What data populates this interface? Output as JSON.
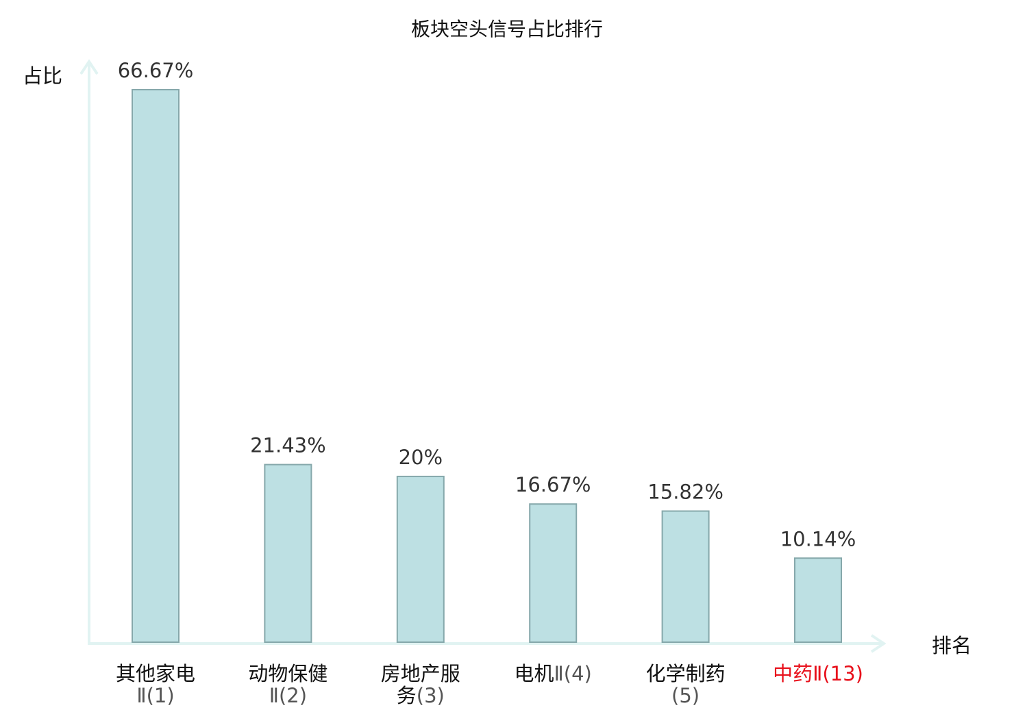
{
  "chart_data": {
    "type": "bar",
    "title": "板块空头信号占比排行",
    "ylabel": "占比",
    "xlabel": "排名",
    "ylim": [
      0,
      66.67
    ],
    "grid": false,
    "categories": [
      {
        "name": "其他家电",
        "suffix": "Ⅱ(1)",
        "highlight": false
      },
      {
        "name": "动物保健",
        "suffix": "Ⅱ(2)",
        "highlight": false
      },
      {
        "name": "房地产服务",
        "suffix": "(3)",
        "highlight": false
      },
      {
        "name": "电机",
        "suffix": "Ⅱ(4)",
        "highlight": false
      },
      {
        "name": "化学制药",
        "suffix": "(5)",
        "highlight": false
      },
      {
        "name": "中药",
        "suffix": "Ⅱ(13)",
        "highlight": true
      }
    ],
    "values": [
      66.67,
      21.43,
      20,
      16.67,
      15.82,
      10.14
    ],
    "value_labels": [
      "66.67%",
      "21.43%",
      "20%",
      "16.67%",
      "15.82%",
      "10.14%"
    ],
    "colors": {
      "bar_fill": "#bde0e3",
      "bar_stroke": "#86a8ab",
      "axis": "#e1f3f2",
      "highlight": "#e8101b"
    }
  }
}
